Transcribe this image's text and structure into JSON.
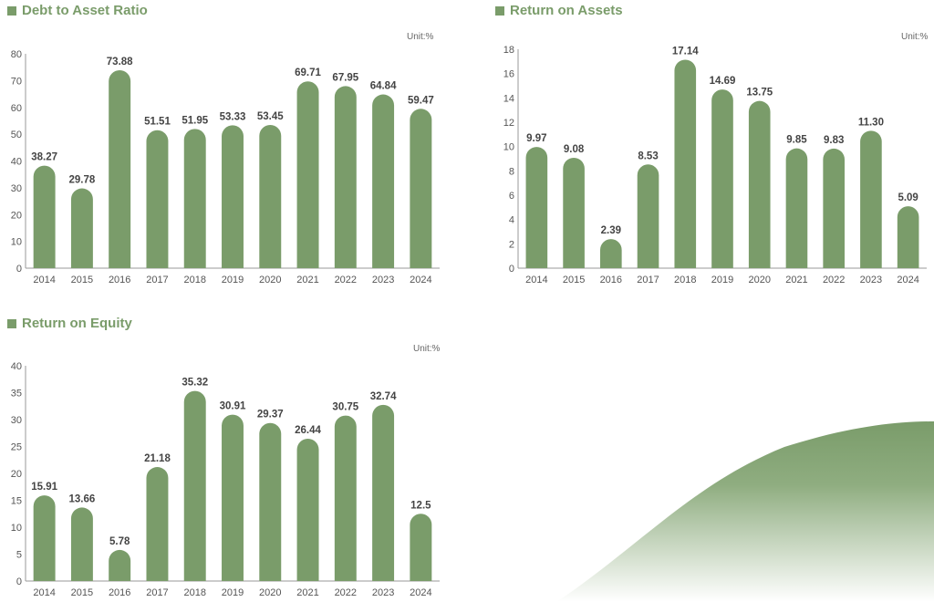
{
  "colors": {
    "bar": "#7a9c6a",
    "title": "#7a9c6a",
    "axis": "#555555",
    "value": "#444444"
  },
  "charts": [
    {
      "title": "Debt to Asset Ratio",
      "unit": "Unit:%",
      "chart_data": {
        "type": "bar",
        "categories": [
          "2014",
          "2015",
          "2016",
          "2017",
          "2018",
          "2019",
          "2020",
          "2021",
          "2022",
          "2023",
          "2024"
        ],
        "values": [
          38.27,
          29.78,
          73.88,
          51.51,
          51.95,
          53.33,
          53.45,
          69.71,
          67.95,
          64.84,
          59.47
        ],
        "labels": [
          "38.27",
          "29.78",
          "73.88",
          "51.51",
          "51.95",
          "53.33",
          "53.45",
          "69.71",
          "67.95",
          "64.84",
          "59.47"
        ],
        "ylim": [
          0,
          80
        ],
        "yticks": [
          0,
          10,
          20,
          30,
          40,
          50,
          60,
          70,
          80
        ],
        "grid": false
      }
    },
    {
      "title": "Return on Assets",
      "unit": "Unit:%",
      "chart_data": {
        "type": "bar",
        "categories": [
          "2014",
          "2015",
          "2016",
          "2017",
          "2018",
          "2019",
          "2020",
          "2021",
          "2022",
          "2023",
          "2024"
        ],
        "values": [
          9.97,
          9.08,
          2.39,
          8.53,
          17.14,
          14.69,
          13.75,
          9.85,
          9.83,
          11.3,
          5.09
        ],
        "labels": [
          "9.97",
          "9.08",
          "2.39",
          "8.53",
          "17.14",
          "14.69",
          "13.75",
          "9.85",
          "9.83",
          "11.30",
          "5.09"
        ],
        "ylim": [
          0,
          18
        ],
        "yticks": [
          0,
          2,
          4,
          6,
          8,
          10,
          12,
          14,
          16,
          18
        ],
        "grid": false
      }
    },
    {
      "title": "Return on Equity",
      "unit": "Unit:%",
      "chart_data": {
        "type": "bar",
        "categories": [
          "2014",
          "2015",
          "2016",
          "2017",
          "2018",
          "2019",
          "2020",
          "2021",
          "2022",
          "2023",
          "2024"
        ],
        "values": [
          15.91,
          13.66,
          5.78,
          21.18,
          35.32,
          30.91,
          29.37,
          26.44,
          30.75,
          32.74,
          12.5
        ],
        "labels": [
          "15.91",
          "13.66",
          "5.78",
          "21.18",
          "35.32",
          "30.91",
          "29.37",
          "26.44",
          "30.75",
          "32.74",
          "12.5"
        ],
        "ylim": [
          0,
          40
        ],
        "yticks": [
          0,
          5,
          10,
          15,
          20,
          25,
          30,
          35,
          40
        ],
        "grid": false
      }
    }
  ]
}
